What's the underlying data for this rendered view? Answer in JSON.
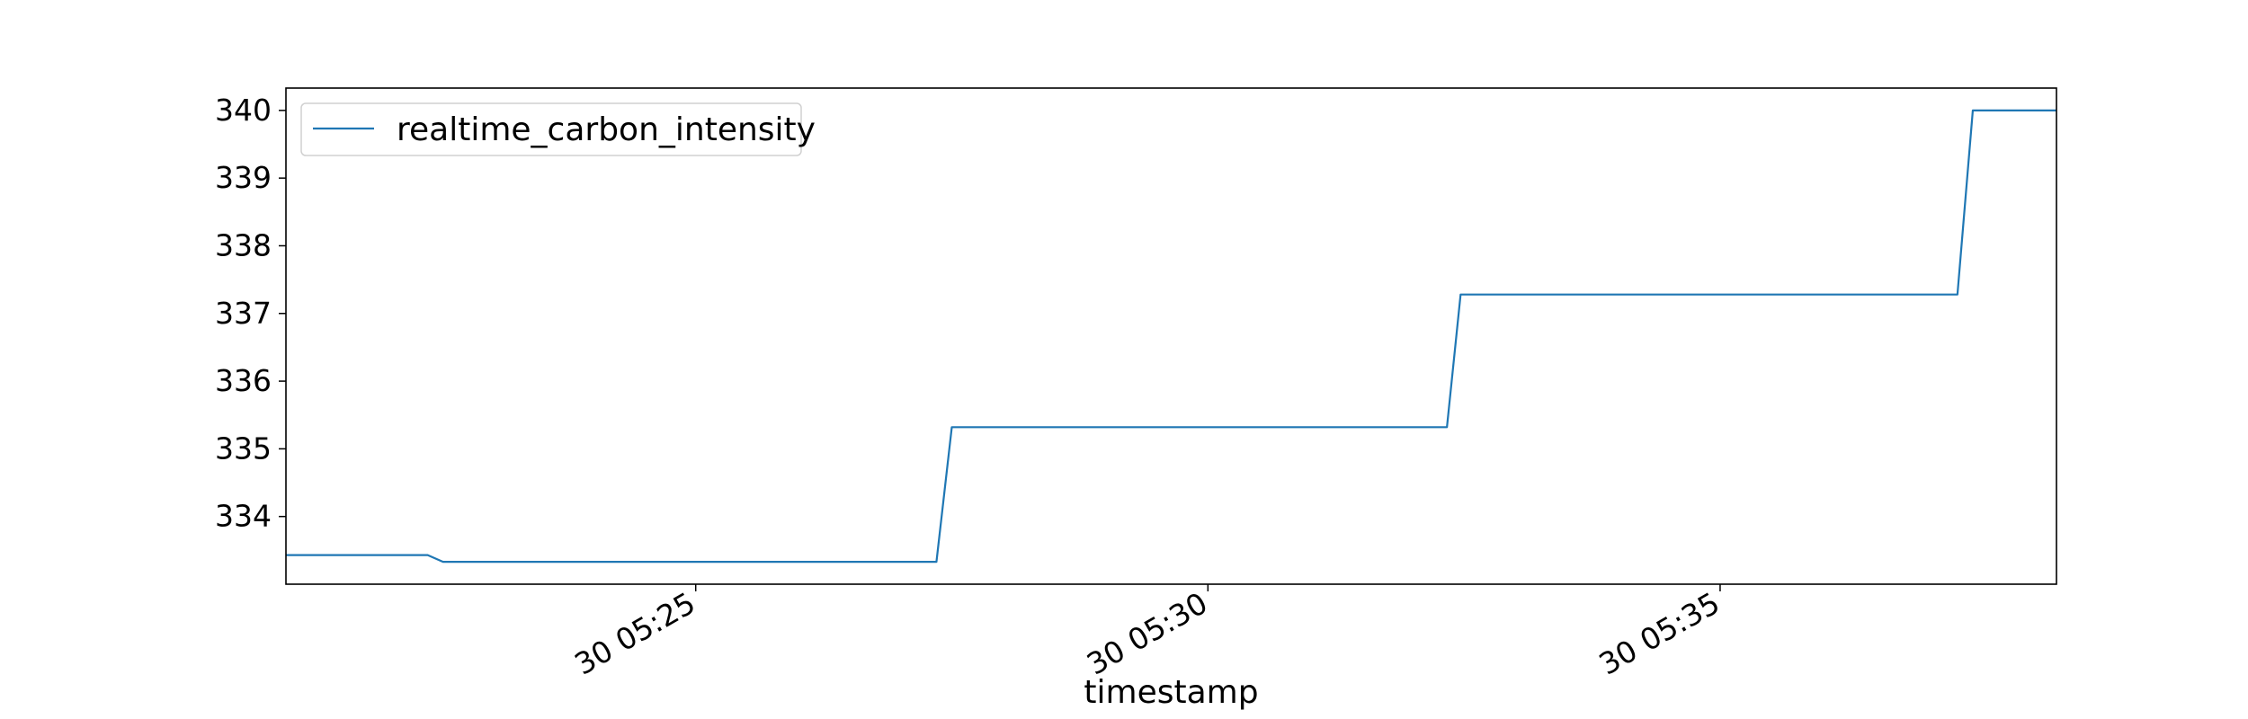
{
  "chart_data": {
    "type": "line",
    "title": "",
    "xlabel": "timestamp",
    "ylabel": "",
    "legend": {
      "position": "upper-left",
      "entries": [
        "realtime_carbon_intensity"
      ]
    },
    "grid": false,
    "xlim": [
      "05:21:00",
      "05:38:17"
    ],
    "ylim": [
      333.0,
      340.33
    ],
    "x_ticks": [
      {
        "value": "05:25:00",
        "label": "30 05:25"
      },
      {
        "value": "05:30:00",
        "label": "30 05:30"
      },
      {
        "value": "05:35:00",
        "label": "30 05:35"
      }
    ],
    "y_ticks": [
      334,
      335,
      336,
      337,
      338,
      339,
      340
    ],
    "series": [
      {
        "name": "realtime_carbon_intensity",
        "color": "#1f77b4",
        "x": [
          "05:21:00",
          "05:22:23",
          "05:22:32",
          "05:27:21",
          "05:27:30",
          "05:32:20",
          "05:32:28",
          "05:37:19",
          "05:37:28",
          "05:38:17"
        ],
        "y": [
          333.43,
          333.43,
          333.33,
          333.33,
          335.32,
          335.32,
          337.28,
          337.28,
          340.0,
          340.0
        ]
      }
    ]
  }
}
